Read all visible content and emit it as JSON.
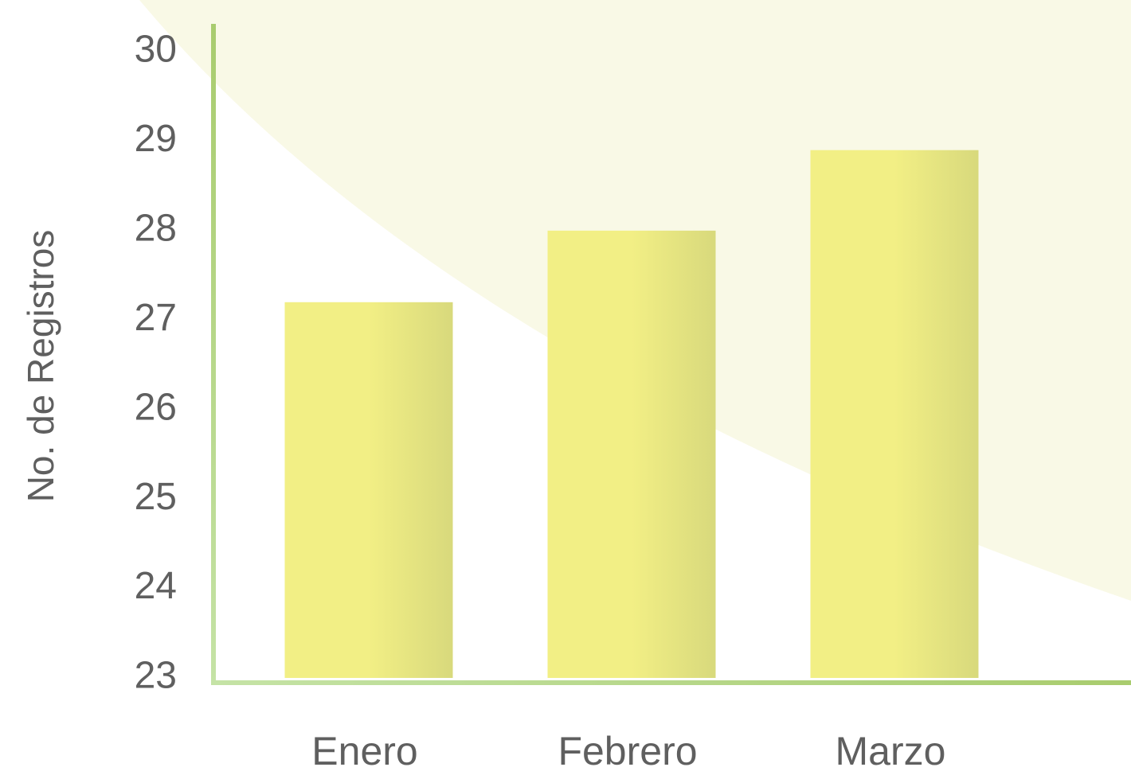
{
  "chart_data": {
    "type": "bar",
    "y_label": "No. de Registros",
    "categories": [
      "Enero",
      "Febrero",
      "Marzo"
    ],
    "values": [
      27.2,
      28.0,
      28.9
    ],
    "color": "#f2ef85",
    "ylim": [
      23,
      30
    ],
    "yticks": [
      23,
      24,
      25,
      26,
      27,
      28,
      29,
      30
    ],
    "grid": false
  }
}
